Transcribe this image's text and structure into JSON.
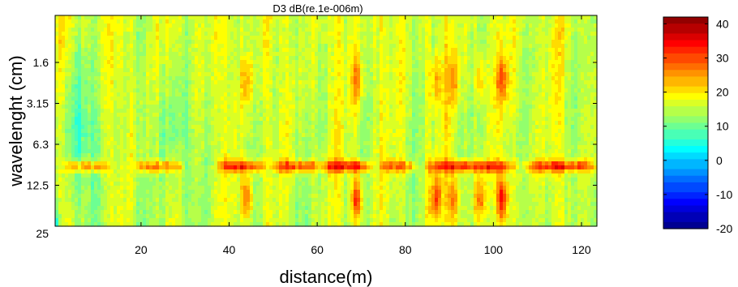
{
  "chart_data": {
    "type": "heatmap",
    "title": "D3  dB(re.1e-006m)",
    "xlabel": "distance(m)",
    "ylabel": "wavelenght (cm)",
    "x_range": [
      0.5,
      123.5
    ],
    "x_ticks": [
      20,
      40,
      60,
      80,
      100,
      120
    ],
    "y_tick_labels": [
      "1.6",
      "3.15",
      "6.3",
      "12.5",
      "25"
    ],
    "colorbar": {
      "min": -20,
      "max": 42,
      "ticks": [
        -20,
        -10,
        0,
        10,
        20,
        30,
        40
      ],
      "colormap": "jet"
    },
    "background_level_db": 15,
    "band_row_wavelength_label_between": [
      "6.3",
      "12.5"
    ],
    "band_segments": [
      {
        "x_start": 3,
        "x_end": 12,
        "value": 28
      },
      {
        "x_start": 19,
        "x_end": 29,
        "value": 28
      },
      {
        "x_start": 38,
        "x_end": 48,
        "value": 30
      },
      {
        "x_start": 50,
        "x_end": 60,
        "value": 30
      },
      {
        "x_start": 61,
        "x_end": 72,
        "value": 32
      },
      {
        "x_start": 75,
        "x_end": 82,
        "value": 27
      },
      {
        "x_start": 85,
        "x_end": 105,
        "value": 32
      },
      {
        "x_start": 107,
        "x_end": 123,
        "value": 31
      }
    ],
    "hot_spots": [
      {
        "x": 69,
        "value": 33
      },
      {
        "x": 87,
        "value": 32
      },
      {
        "x": 102,
        "value": 36
      },
      {
        "x": 91,
        "value": 29
      },
      {
        "x": 97,
        "value": 29
      },
      {
        "x": 44,
        "value": 30
      }
    ],
    "low_regions": [
      {
        "x_start": 0.5,
        "x_end": 12,
        "value": 5
      },
      {
        "x_start": 22,
        "x_end": 34,
        "value": 8
      }
    ],
    "grid": false,
    "legend": "colorbar-right"
  }
}
